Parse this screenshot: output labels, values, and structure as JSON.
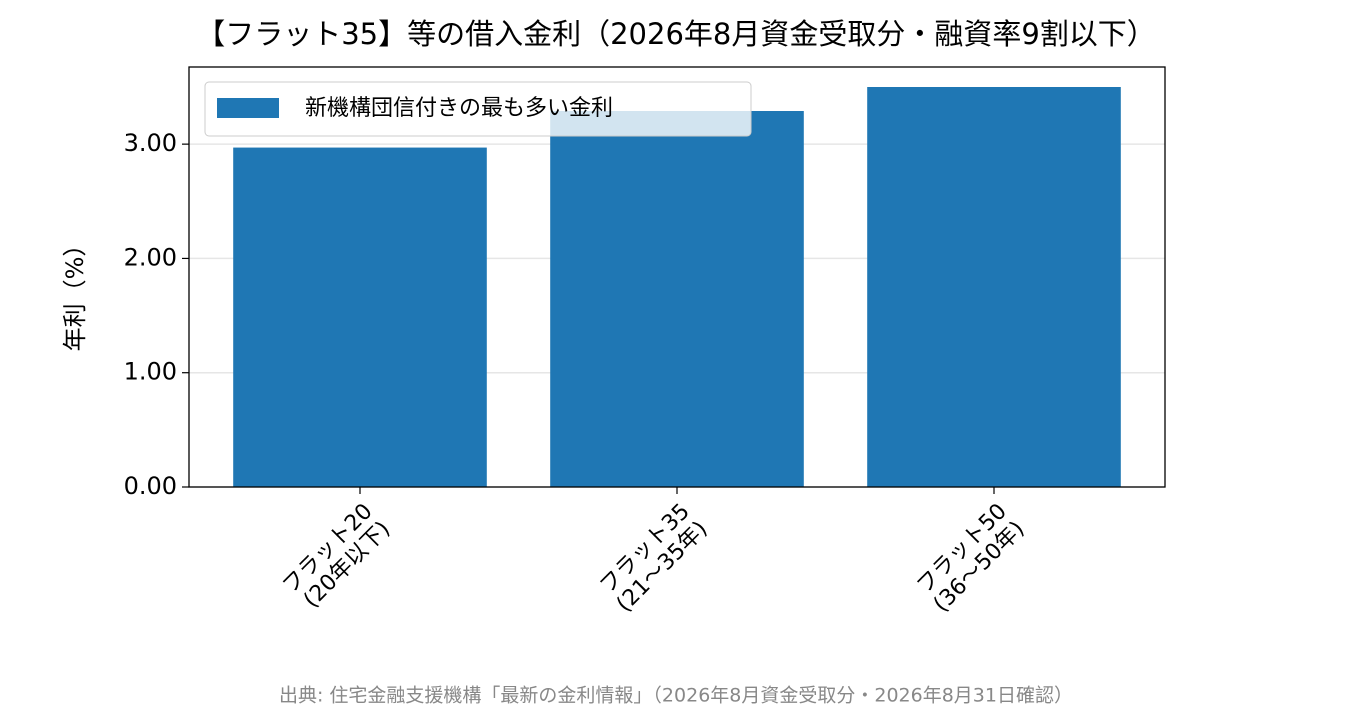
{
  "chart_data": {
    "type": "bar",
    "title": "【フラット35】等の借入金利（2026年8月資金受取分・融資率9割以下）",
    "ylabel": "年利（%）",
    "categories": [
      "フラット20\n(20年以下)",
      "フラット35\n(21～35年)",
      "フラット50\n(36～50年)"
    ],
    "series": [
      {
        "name": "新機構団信付きの最も多い金利",
        "color": "#1f77b4",
        "values": [
          2.97,
          3.29,
          3.5
        ]
      }
    ],
    "ylim": [
      0,
      3.675
    ],
    "yticks": [
      {
        "value": 0,
        "label": "0.00"
      },
      {
        "value": 1,
        "label": "1.00"
      },
      {
        "value": 2,
        "label": "2.00"
      },
      {
        "value": 3,
        "label": "3.00"
      }
    ],
    "grid": true,
    "legend": "upper-left",
    "source": "出典: 住宅金融支援機構「最新の金利情報」（2026年8月資金受取分・2026年8月31日確認）"
  }
}
